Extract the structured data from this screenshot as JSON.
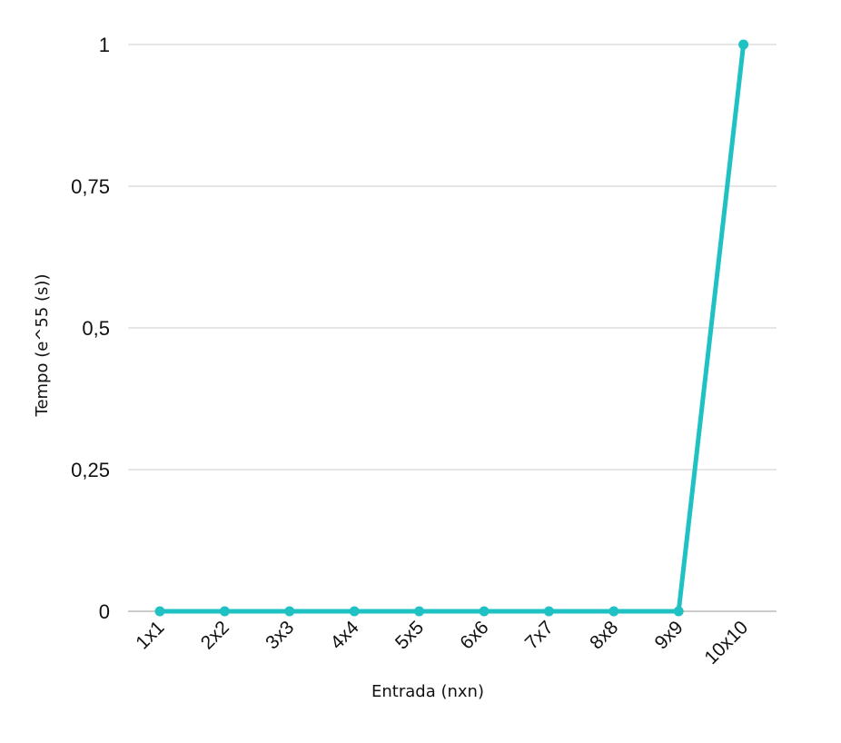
{
  "chart_data": {
    "type": "line",
    "categories": [
      "1x1",
      "2x2",
      "3x3",
      "4x4",
      "5x5",
      "6x6",
      "7x7",
      "8x8",
      "9x9",
      "10x10"
    ],
    "series": [
      {
        "values": [
          0,
          0,
          0,
          0,
          0,
          0,
          0,
          0,
          0,
          1
        ]
      }
    ],
    "xlabel": "Entrada (nxn)",
    "ylabel": "Tempo (e^55 (s))",
    "ylim": [
      0,
      1
    ],
    "yticks": [
      {
        "value": 0,
        "label": "0"
      },
      {
        "value": 0.25,
        "label": "0,25"
      },
      {
        "value": 0.5,
        "label": "0,5"
      },
      {
        "value": 0.75,
        "label": "0,75"
      },
      {
        "value": 1,
        "label": "1"
      }
    ],
    "grid": true,
    "legend": "none",
    "colors": {
      "series": "#1fc1c3",
      "grid": "#cccccc",
      "baseline": "#999999"
    }
  }
}
